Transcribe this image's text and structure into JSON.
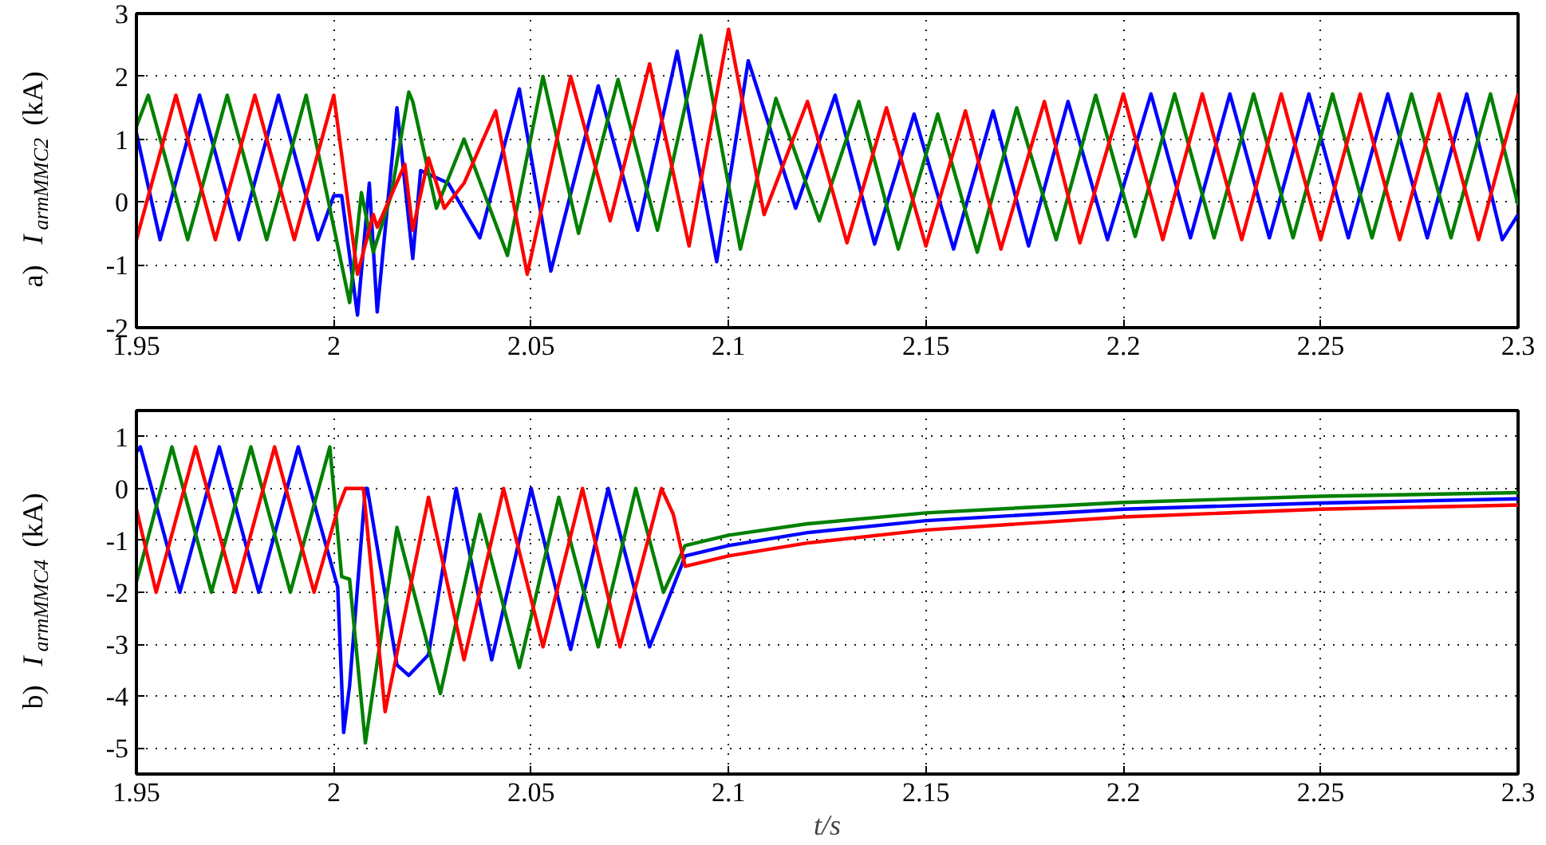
{
  "chart_data": [
    {
      "type": "line",
      "ylabel": "a) I$_{armMMC2}$ (kA)",
      "xlim": [
        1.95,
        2.3
      ],
      "ylim": [
        -2,
        3
      ],
      "xticks": [
        1.95,
        2,
        2.05,
        2.1,
        2.15,
        2.2,
        2.25,
        2.3
      ],
      "yticks": [
        -2,
        -1,
        0,
        1,
        2,
        3
      ],
      "grid": true,
      "series": [
        {
          "color": "#0000ff",
          "x": [
            1.95,
            1.956,
            1.966,
            1.976,
            1.986,
            1.996,
            2.0,
            2.002,
            2.006,
            2.009,
            2.011,
            2.016,
            2.02,
            2.022,
            2.029,
            2.037,
            2.047,
            2.055,
            2.067,
            2.077,
            2.087,
            2.097,
            2.105,
            2.117,
            2.127,
            2.137,
            2.147,
            2.157,
            2.167,
            2.176,
            2.186,
            2.196,
            2.207,
            2.217,
            2.227,
            2.237,
            2.247,
            2.257,
            2.267,
            2.277,
            2.287,
            2.296,
            2.3
          ],
          "values": [
            1.1,
            -0.6,
            1.7,
            -0.6,
            1.7,
            -0.6,
            0.1,
            0.1,
            -1.8,
            0.3,
            -1.75,
            1.5,
            -0.9,
            0.5,
            0.3,
            -0.57,
            1.8,
            -1.1,
            1.85,
            -0.45,
            2.4,
            -0.95,
            2.25,
            -0.1,
            1.7,
            -0.67,
            1.4,
            -0.75,
            1.45,
            -0.7,
            1.6,
            -0.6,
            1.72,
            -0.57,
            1.72,
            -0.57,
            1.72,
            -0.57,
            1.72,
            -0.57,
            1.72,
            -0.6,
            -0.2
          ]
        },
        {
          "color": "#008000",
          "x": [
            1.95,
            1.953,
            1.963,
            1.973,
            1.983,
            1.993,
            2.004,
            2.007,
            2.01,
            2.0145,
            2.019,
            2.02,
            2.026,
            2.033,
            2.044,
            2.053,
            2.062,
            2.072,
            2.082,
            2.093,
            2.103,
            2.112,
            2.123,
            2.133,
            2.143,
            2.153,
            2.163,
            2.173,
            2.183,
            2.193,
            2.203,
            2.213,
            2.223,
            2.233,
            2.243,
            2.253,
            2.263,
            2.273,
            2.283,
            2.293,
            2.3
          ],
          "values": [
            1.2,
            1.7,
            -0.6,
            1.7,
            -0.6,
            1.7,
            -1.6,
            0.15,
            -0.8,
            0.1,
            1.75,
            1.6,
            -0.1,
            1.0,
            -0.85,
            2.0,
            -0.5,
            1.95,
            -0.45,
            2.65,
            -0.75,
            1.65,
            -0.3,
            1.6,
            -0.75,
            1.4,
            -0.8,
            1.5,
            -0.6,
            1.7,
            -0.55,
            1.72,
            -0.57,
            1.72,
            -0.57,
            1.72,
            -0.57,
            1.72,
            -0.57,
            1.72,
            -0.05
          ]
        },
        {
          "color": "#ff0000",
          "x": [
            1.95,
            1.96,
            1.97,
            1.98,
            1.99,
            2.0,
            2.006,
            2.01,
            2.011,
            2.018,
            2.02,
            2.024,
            2.028,
            2.033,
            2.041,
            2.049,
            2.06,
            2.07,
            2.08,
            2.09,
            2.1,
            2.109,
            2.12,
            2.13,
            2.14,
            2.15,
            2.16,
            2.169,
            2.18,
            2.189,
            2.2,
            2.21,
            2.22,
            2.23,
            2.24,
            2.25,
            2.26,
            2.27,
            2.28,
            2.29,
            2.3
          ],
          "values": [
            -0.6,
            1.7,
            -0.6,
            1.7,
            -0.6,
            1.7,
            -1.15,
            -0.2,
            -0.4,
            0.6,
            -0.45,
            0.7,
            -0.1,
            0.3,
            1.45,
            -1.15,
            2.0,
            -0.3,
            2.2,
            -0.7,
            2.75,
            -0.2,
            1.6,
            -0.65,
            1.5,
            -0.7,
            1.45,
            -0.75,
            1.6,
            -0.65,
            1.72,
            -0.6,
            1.72,
            -0.6,
            1.72,
            -0.6,
            1.72,
            -0.6,
            1.72,
            -0.6,
            1.72
          ]
        }
      ]
    },
    {
      "type": "line",
      "ylabel": "b) I$_{armMMC4}$ (kA)",
      "xlabel": "t/s",
      "xlim": [
        1.95,
        2.3
      ],
      "ylim": [
        -5.5,
        1.5
      ],
      "xticks": [
        1.95,
        2,
        2.05,
        2.1,
        2.15,
        2.2,
        2.25,
        2.3
      ],
      "yticks": [
        -5,
        -4,
        -3,
        -2,
        -1,
        0,
        1
      ],
      "grid": true,
      "series": [
        {
          "color": "#0000ff",
          "x": [
            1.95,
            1.951,
            1.961,
            1.971,
            1.981,
            1.991,
            2.001,
            2.0025,
            2.004,
            2.008,
            2.0085,
            2.016,
            2.019,
            2.024,
            2.031,
            2.04,
            2.05,
            2.06,
            2.0695,
            2.08,
            2.088,
            2.089,
            2.1,
            2.12,
            2.15,
            2.2,
            2.25,
            2.3
          ],
          "values": [
            0.7,
            0.8,
            -2.0,
            0.8,
            -2.0,
            0.8,
            -1.9,
            -4.7,
            -3.8,
            0.0,
            0.0,
            -3.4,
            -3.6,
            -3.2,
            0.0,
            -3.3,
            0.0,
            -3.1,
            0.0,
            -3.05,
            -1.5,
            -1.3,
            -1.1,
            -0.85,
            -0.62,
            -0.4,
            -0.28,
            -0.2
          ]
        },
        {
          "color": "#008000",
          "x": [
            1.95,
            1.959,
            1.969,
            1.979,
            1.989,
            1.999,
            2.002,
            2.004,
            2.008,
            2.016,
            2.027,
            2.037,
            2.047,
            2.057,
            2.067,
            2.0765,
            2.0835,
            2.089,
            2.1,
            2.12,
            2.15,
            2.2,
            2.25,
            2.3
          ],
          "values": [
            -1.8,
            0.8,
            -2.0,
            0.8,
            -2.0,
            0.8,
            -1.7,
            -1.75,
            -4.9,
            -0.75,
            -3.95,
            -0.5,
            -3.45,
            -0.17,
            -3.05,
            0.0,
            -2.0,
            -1.1,
            -0.9,
            -0.68,
            -0.47,
            -0.27,
            -0.15,
            -0.08
          ]
        },
        {
          "color": "#ff0000",
          "x": [
            1.95,
            1.955,
            1.965,
            1.975,
            1.985,
            1.995,
            2.001,
            2.003,
            2.0075,
            2.013,
            2.024,
            2.033,
            2.043,
            2.053,
            2.063,
            2.0725,
            2.083,
            2.086,
            2.089,
            2.1,
            2.12,
            2.15,
            2.2,
            2.25,
            2.3
          ],
          "values": [
            -0.4,
            -2.0,
            0.8,
            -2.0,
            0.8,
            -2.0,
            -0.4,
            0.0,
            0.0,
            -4.3,
            -0.17,
            -3.3,
            0.0,
            -3.05,
            0.0,
            -3.05,
            0.0,
            -0.5,
            -1.5,
            -1.3,
            -1.05,
            -0.8,
            -0.55,
            -0.4,
            -0.32
          ]
        }
      ]
    }
  ]
}
